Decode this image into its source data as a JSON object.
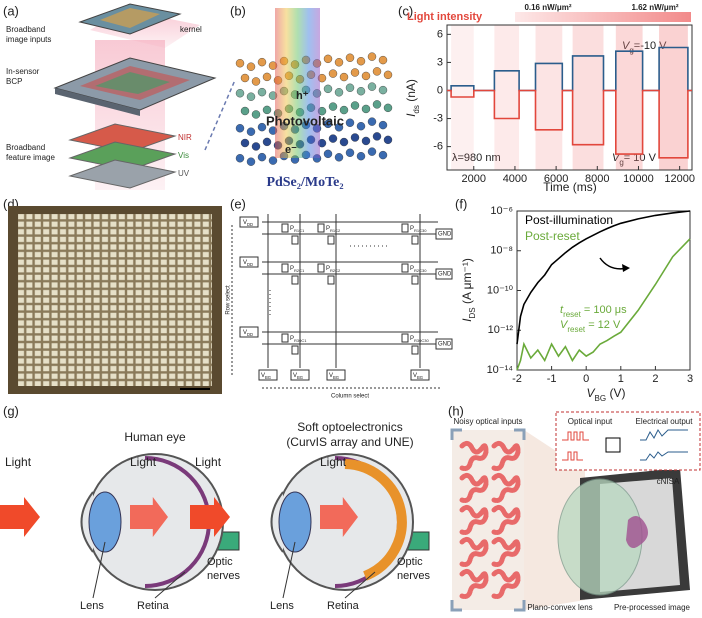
{
  "panel_labels": [
    "(a)",
    "(b)",
    "(c)",
    "(d)",
    "(e)",
    "(f)",
    "(g)",
    "(h)"
  ],
  "panel_a": {
    "inputs": [
      "Broadband",
      "image inputs"
    ],
    "kernel": "kernel",
    "bcp": [
      "In-sensor",
      "BCP"
    ],
    "bands": [
      "NIR",
      "Vis",
      "UV"
    ],
    "output": [
      "Broadband",
      "feature image"
    ]
  },
  "panel_b": {
    "hole": "h⁺",
    "effect": "Photovoltaic",
    "electron": "e⁻",
    "material": "PdSe₂/MoTe₂"
  },
  "chart_data": [
    {
      "type": "line",
      "title": "Light intensity",
      "intensity_labels": [
        "0.16 nW/μm²",
        "1.62 nW/μm²"
      ],
      "x": [
        700,
        900,
        900,
        2000,
        2000,
        3000,
        3000,
        4200,
        4200,
        5000,
        5000,
        6300,
        6300,
        6800,
        6800,
        8300,
        8300,
        8900,
        8900,
        10200,
        10200,
        11000,
        11000,
        12400,
        12400,
        12600
      ],
      "series": [
        {
          "color": "#2b5d8c",
          "values": [
            0,
            0,
            0.5,
            0.5,
            0,
            0,
            2.1,
            2.1,
            0,
            0,
            2.9,
            2.9,
            0,
            0,
            3.7,
            3.7,
            0,
            0,
            4.2,
            4.2,
            0,
            0,
            4.6,
            4.6,
            0,
            0
          ]
        },
        {
          "color": "#e2473c",
          "values": [
            0,
            0,
            -0.7,
            -0.7,
            0,
            0,
            -3,
            -3,
            0,
            0,
            -4.2,
            -4.2,
            0,
            0,
            -5.8,
            -5.8,
            0,
            0,
            -6.8,
            -6.8,
            0,
            0,
            -7.2,
            -7.2,
            0,
            0
          ]
        }
      ],
      "xlim": [
        700,
        12600
      ],
      "xticks": [
        2000,
        4000,
        6000,
        8000,
        10000,
        12000
      ],
      "ylim": [
        -8.5,
        7
      ],
      "yticks": [
        -6,
        -3,
        0,
        3,
        6
      ],
      "xlabel": "Time (ms)",
      "ylabel": {
        "main": "I",
        "sub": "ds",
        "rest": " (nA)"
      },
      "annotations": [
        {
          "main": "V",
          "sub": "g",
          "rest": "=-10 V"
        },
        {
          "main": "V",
          "sub": "g",
          "rest": "= 10 V"
        },
        "λ=980 nm"
      ]
    },
    {
      "type": "line",
      "ylog": true,
      "x": [
        -2,
        -1.9,
        -1.8,
        -1.6,
        -1.4,
        -1.2,
        -1,
        -0.8,
        -0.6,
        -0.4,
        -0.2,
        0,
        0.2,
        0.4,
        0.6,
        0.8,
        1,
        1.5,
        2,
        2.5,
        3
      ],
      "series": [
        {
          "name": "Post-illumination",
          "color": "#000000",
          "values": [
            2e-13,
            5e-12,
            2e-11,
            8e-11,
            2.5e-10,
            6e-10,
            2e-09,
            4e-09,
            8e-09,
            1.5e-08,
            2.5e-08,
            4e-08,
            6e-08,
            9e-08,
            1.3e-07,
            1.8e-07,
            2.4e-07,
            4e-07,
            6e-07,
            8e-07,
            1e-06
          ]
        },
        {
          "name": "Post-reset",
          "color": "#6aaa3a",
          "values": [
            1e-14,
            3e-14,
            2e-13,
            4e-14,
            1e-13,
            3e-14,
            2e-13,
            5e-14,
            1.5e-13,
            3e-14,
            1e-13,
            5e-14,
            8e-14,
            2e-13,
            3e-13,
            5e-13,
            8e-13,
            1e-11,
            2e-10,
            5e-09,
            4e-08
          ]
        }
      ],
      "xlim": [
        -2,
        3
      ],
      "xticks": [
        -2,
        -1,
        0,
        1,
        2,
        3
      ],
      "ylim": [
        1e-14,
        1e-06
      ],
      "yticks": [
        {
          "value": 1e-14,
          "label": "10⁻¹⁴"
        },
        {
          "value": 1e-12,
          "label": "10⁻¹²"
        },
        {
          "value": 1e-10,
          "label": "10⁻¹⁰"
        },
        {
          "value": 1e-08,
          "label": "10⁻⁸"
        },
        {
          "value": 1e-06,
          "label": "10⁻⁶"
        }
      ],
      "xlabel": {
        "main": "V",
        "sub": "BG",
        "rest": " (V)"
      },
      "ylabel": {
        "main": "I",
        "sub": "DS",
        "rest": " (A μm⁻¹)"
      },
      "annotations": [
        {
          "main": "t",
          "sub": "reset",
          "rest": " = 100 μs"
        },
        {
          "main": "V",
          "sub": "reset",
          "rest": " = 12 V"
        }
      ]
    }
  ],
  "panel_e": {
    "supply": {
      "main": "V",
      "sub": "DD"
    },
    "ground": "GND",
    "gate": {
      "main": "V",
      "sub": "BG"
    },
    "pixels": [
      [
        [
          "P",
          "R1C1"
        ],
        [
          "P",
          "R1C2"
        ],
        [
          "P",
          "R1C30"
        ]
      ],
      [
        [
          "P",
          "R2C1"
        ],
        [
          "P",
          "R2C2"
        ],
        [
          "P",
          "R2C30"
        ]
      ],
      [
        [
          "P",
          "R30C1"
        ],
        [
          "P",
          "R30C30"
        ]
      ]
    ],
    "row_select": "Row select",
    "column_select": "Column select"
  },
  "panel_g": {
    "left_title": "Human eye",
    "right_title": [
      "Soft  optoelectronics",
      "(CurvIS array and UNE)"
    ],
    "light": "Light",
    "nerves": [
      "Optic",
      "nerves"
    ],
    "lens": "Lens",
    "retina": "Retina"
  },
  "panel_h": {
    "inputs": "Noisy optical inputs",
    "optical": "Optical input",
    "electrical": "Electrical output",
    "device": "cNISA",
    "lens": "Plano-convex lens",
    "image": "Pre-processed image"
  }
}
